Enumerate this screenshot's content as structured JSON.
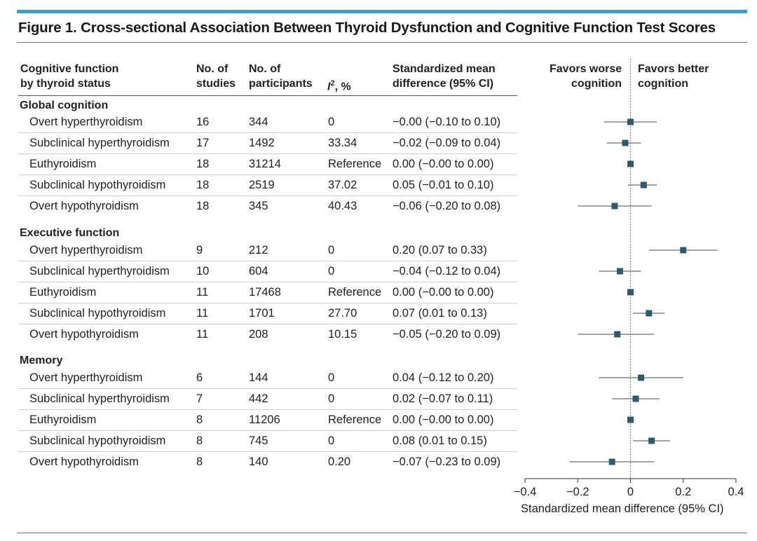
{
  "figure_title": "Figure 1. Cross-sectional Association Between Thyroid Dysfunction and Cognitive Function Test Scores",
  "headers": {
    "status_line1": "Cognitive function",
    "status_line2": "by thyroid status",
    "studies_line1": "No. of",
    "studies_line2": "studies",
    "parts_line1": "No. of",
    "parts_line2": "participants",
    "i2_symbol": "I",
    "i2_sup": "2",
    "i2_suffix": ", %",
    "smd_line1": "Standardized mean",
    "smd_line2": "difference (95% CI)"
  },
  "favors": {
    "worse_line1": "Favors worse",
    "worse_line2": "cognition",
    "better_line1": "Favors better",
    "better_line2": "cognition"
  },
  "sections": [
    {
      "name": "Global cognition",
      "rows": [
        {
          "label": "Overt hyperthyroidism",
          "studies": "16",
          "participants": "344",
          "i2": "0",
          "smd_text": "−0.00 (−0.10 to 0.10)"
        },
        {
          "label": "Subclinical hyperthyroidism",
          "studies": "17",
          "participants": "1492",
          "i2": "33.34",
          "smd_text": "−0.02 (−0.09 to 0.04)"
        },
        {
          "label": "Euthyroidism",
          "studies": "18",
          "participants": "31214",
          "i2": "Reference",
          "smd_text": "0.00 (−0.00 to 0.00)"
        },
        {
          "label": "Subclinical hypothyroidism",
          "studies": "18",
          "participants": "2519",
          "i2": "37.02",
          "smd_text": "0.05 (−0.01 to 0.10)"
        },
        {
          "label": "Overt hypothyroidism",
          "studies": "18",
          "participants": "345",
          "i2": "40.43",
          "smd_text": "−0.06 (−0.20 to 0.08)"
        }
      ]
    },
    {
      "name": "Executive function",
      "rows": [
        {
          "label": "Overt hyperthyroidism",
          "studies": "9",
          "participants": "212",
          "i2": "0",
          "smd_text": "0.20 (0.07 to 0.33)"
        },
        {
          "label": "Subclinical hyperthyroidism",
          "studies": "10",
          "participants": "604",
          "i2": "0",
          "smd_text": "−0.04 (−0.12 to 0.04)"
        },
        {
          "label": "Euthyroidism",
          "studies": "11",
          "participants": "17468",
          "i2": "Reference",
          "smd_text": "0.00 (−0.00 to 0.00)"
        },
        {
          "label": "Subclinical hypothyroidism",
          "studies": "11",
          "participants": "1701",
          "i2": "27.70",
          "smd_text": "0.07 (0.01 to 0.13)"
        },
        {
          "label": "Overt hypothyroidism",
          "studies": "11",
          "participants": "208",
          "i2": "10.15",
          "smd_text": "−0.05 (−0.20 to 0.09)"
        }
      ]
    },
    {
      "name": "Memory",
      "rows": [
        {
          "label": "Overt hyperthyroidism",
          "studies": "6",
          "participants": "144",
          "i2": "0",
          "smd_text": "0.04 (−0.12 to 0.20)"
        },
        {
          "label": "Subclinical hyperthyroidism",
          "studies": "7",
          "participants": "442",
          "i2": "0",
          "smd_text": "0.02 (−0.07 to 0.11)"
        },
        {
          "label": "Euthyroidism",
          "studies": "8",
          "participants": "11206",
          "i2": "Reference",
          "smd_text": "0.00 (−0.00 to 0.00)"
        },
        {
          "label": "Subclinical hypothyroidism",
          "studies": "8",
          "participants": "745",
          "i2": "0",
          "smd_text": "0.08 (0.01 to 0.15)"
        },
        {
          "label": "Overt hypothyroidism",
          "studies": "8",
          "participants": "140",
          "i2": "0.20",
          "smd_text": "−0.07 (−0.23 to 0.09)"
        }
      ]
    }
  ],
  "chart_data": {
    "type": "forest",
    "title": "Figure 1. Cross-sectional Association Between Thyroid Dysfunction and Cognitive Function Test Scores",
    "xlabel": "Standardized mean difference (95% CI)",
    "xlim": [
      -0.4,
      0.4
    ],
    "xticks": [
      -0.4,
      -0.2,
      0,
      0.2,
      0.4
    ],
    "xtick_labels": [
      "−0.4",
      "−0.2",
      "0",
      "0.2",
      "0.4"
    ],
    "reference_line": 0,
    "points": [
      {
        "section": "Global cognition",
        "label": "Overt hyperthyroidism",
        "estimate": 0.0,
        "low": -0.1,
        "high": 0.1
      },
      {
        "section": "Global cognition",
        "label": "Subclinical hyperthyroidism",
        "estimate": -0.02,
        "low": -0.09,
        "high": 0.04
      },
      {
        "section": "Global cognition",
        "label": "Euthyroidism",
        "estimate": 0.0,
        "low": 0.0,
        "high": 0.0
      },
      {
        "section": "Global cognition",
        "label": "Subclinical hypothyroidism",
        "estimate": 0.05,
        "low": -0.01,
        "high": 0.1
      },
      {
        "section": "Global cognition",
        "label": "Overt hypothyroidism",
        "estimate": -0.06,
        "low": -0.2,
        "high": 0.08
      },
      {
        "section": "Executive function",
        "label": "Overt hyperthyroidism",
        "estimate": 0.2,
        "low": 0.07,
        "high": 0.33
      },
      {
        "section": "Executive function",
        "label": "Subclinical hyperthyroidism",
        "estimate": -0.04,
        "low": -0.12,
        "high": 0.04
      },
      {
        "section": "Executive function",
        "label": "Euthyroidism",
        "estimate": 0.0,
        "low": 0.0,
        "high": 0.0
      },
      {
        "section": "Executive function",
        "label": "Subclinical hypothyroidism",
        "estimate": 0.07,
        "low": 0.01,
        "high": 0.13
      },
      {
        "section": "Executive function",
        "label": "Overt hypothyroidism",
        "estimate": -0.05,
        "low": -0.2,
        "high": 0.09
      },
      {
        "section": "Memory",
        "label": "Overt hyperthyroidism",
        "estimate": 0.04,
        "low": -0.12,
        "high": 0.2
      },
      {
        "section": "Memory",
        "label": "Subclinical hyperthyroidism",
        "estimate": 0.02,
        "low": -0.07,
        "high": 0.11
      },
      {
        "section": "Memory",
        "label": "Euthyroidism",
        "estimate": 0.0,
        "low": 0.0,
        "high": 0.0
      },
      {
        "section": "Memory",
        "label": "Subclinical hypothyroidism",
        "estimate": 0.08,
        "low": 0.01,
        "high": 0.15
      },
      {
        "section": "Memory",
        "label": "Overt hypothyroidism",
        "estimate": -0.07,
        "low": -0.23,
        "high": 0.09
      }
    ]
  },
  "colors": {
    "accent_bar": "#3c9fc6",
    "marker": "#2e5a6e",
    "whisker": "#4a4a4a",
    "text": "#222222"
  }
}
